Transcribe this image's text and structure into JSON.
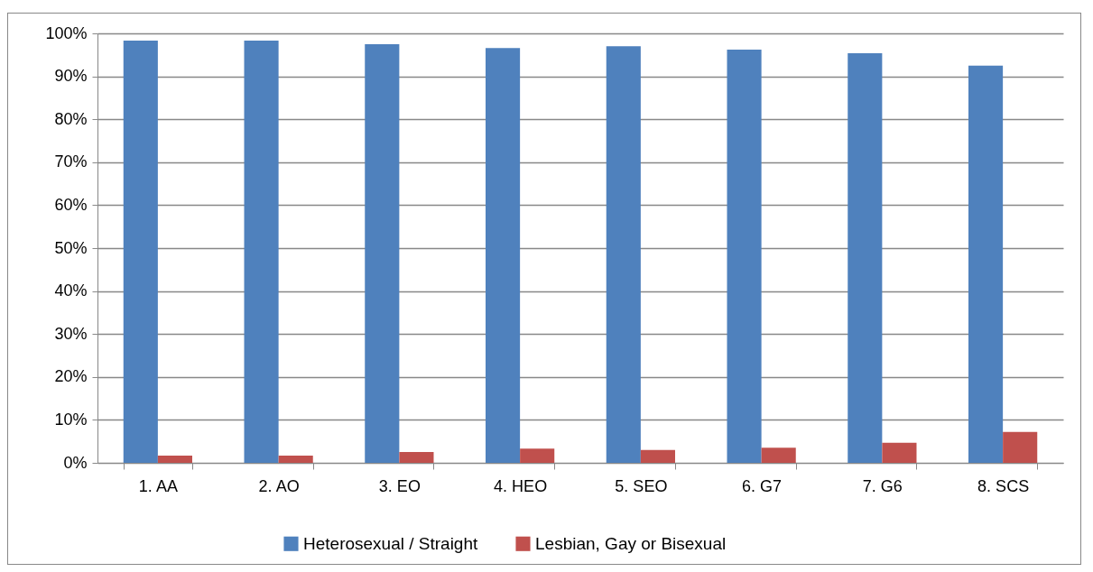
{
  "chart_data": {
    "type": "bar",
    "categories": [
      "1. AA",
      "2. AO",
      "3. EO",
      "4. HEO",
      "5. SEO",
      "6. G7",
      "7. G6",
      "8. SCS"
    ],
    "series": [
      {
        "name": "Heterosexual / Straight",
        "color": "#4f81bd",
        "values": [
          98.3,
          98.3,
          97.5,
          96.6,
          97.0,
          96.2,
          95.4,
          92.5
        ]
      },
      {
        "name": "Lesbian, Gay or Bisexual",
        "color": "#c0504d",
        "values": [
          1.7,
          1.7,
          2.5,
          3.3,
          3.0,
          3.5,
          4.7,
          7.2
        ]
      }
    ],
    "ylim": [
      0,
      100
    ],
    "yticks": [
      {
        "value": 0,
        "label": "0%"
      },
      {
        "value": 10,
        "label": "10%"
      },
      {
        "value": 20,
        "label": "20%"
      },
      {
        "value": 30,
        "label": "30%"
      },
      {
        "value": 40,
        "label": "40%"
      },
      {
        "value": 50,
        "label": "50%"
      },
      {
        "value": 60,
        "label": "60%"
      },
      {
        "value": 70,
        "label": "70%"
      },
      {
        "value": 80,
        "label": "80%"
      },
      {
        "value": 90,
        "label": "90%"
      },
      {
        "value": 100,
        "label": "100%"
      }
    ],
    "grid": "y",
    "legend": "bottom"
  }
}
